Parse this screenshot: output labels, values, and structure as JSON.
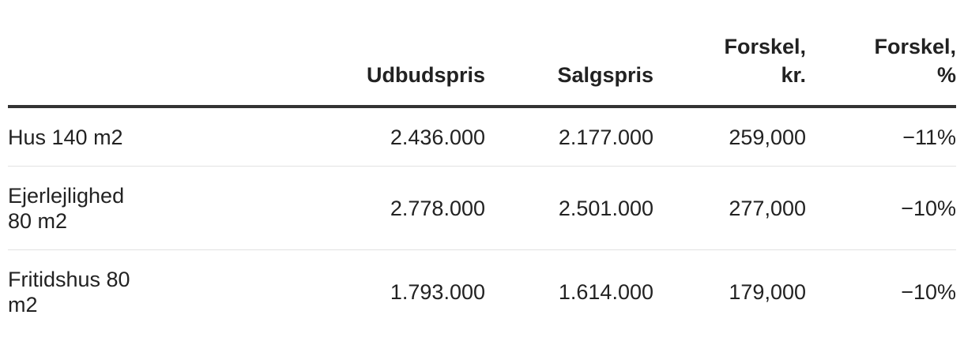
{
  "table": {
    "headers": {
      "col0": "",
      "col1": "Udbudspris",
      "col2": "Salgspris",
      "col3_line1": "Forskel,",
      "col3_line2": "kr.",
      "col4_line1": "Forskel,",
      "col4_line2": "%"
    },
    "rows": [
      {
        "label": "Hus 140 m2",
        "udbudspris": "2.436.000",
        "salgspris": "2.177.000",
        "forskel_kr": "259,000",
        "forskel_pct": "−11%"
      },
      {
        "label": "Ejerlejlighed 80 m2",
        "udbudspris": "2.778.000",
        "salgspris": "2.501.000",
        "forskel_kr": "277,000",
        "forskel_pct": "−10%"
      },
      {
        "label": "Fritidshus 80 m2",
        "udbudspris": "1.793.000",
        "salgspris": "1.614.000",
        "forskel_kr": "179,000",
        "forskel_pct": "−10%"
      }
    ]
  }
}
